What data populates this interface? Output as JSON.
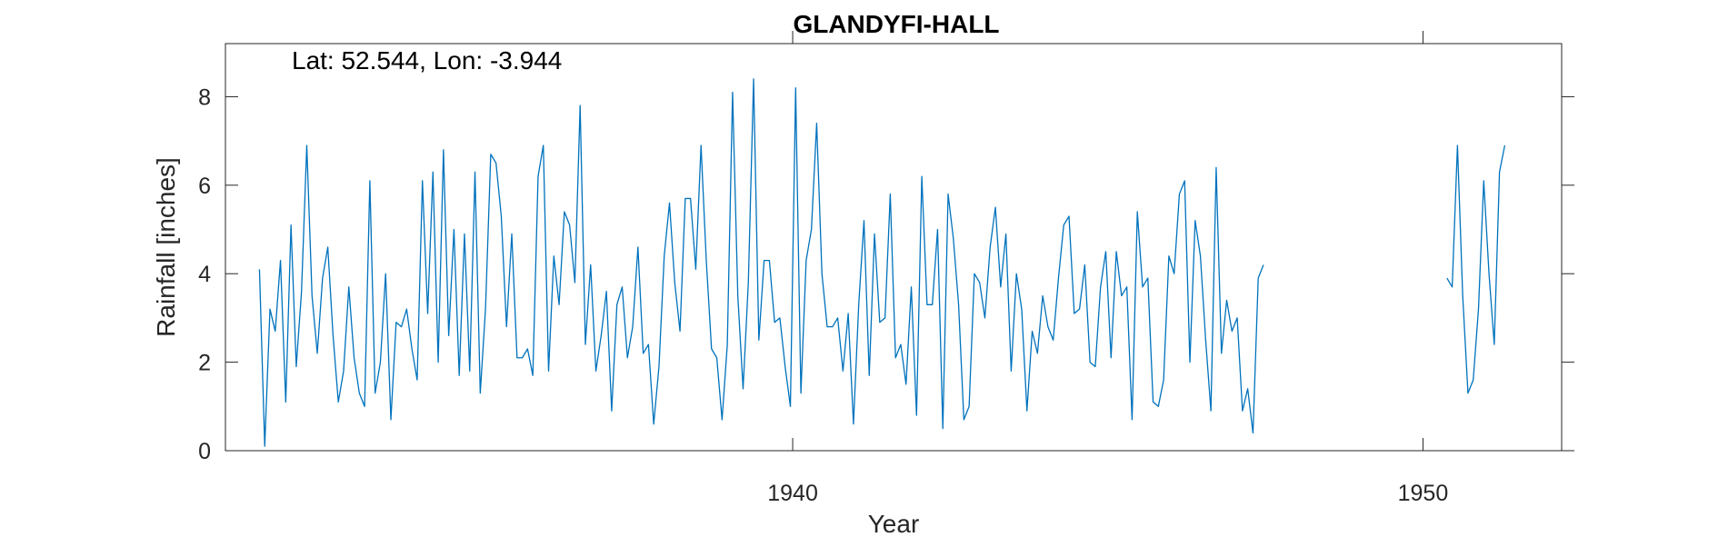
{
  "chart_data": {
    "type": "line",
    "title": "GLANDYFI-HALL",
    "xlabel": "Year",
    "ylabel": "Rainfall [inches]",
    "annotation": "Lat: 52.544, Lon: -3.944",
    "xlim": [
      1931,
      1952.2
    ],
    "ylim": [
      0,
      9.2
    ],
    "xticks": [
      1940,
      1950
    ],
    "yticks": [
      0,
      2,
      4,
      6,
      8
    ],
    "grid": false,
    "legend": "none",
    "line_color": "#0072BD",
    "series": [
      {
        "segments": [
          {
            "start": 1931.54,
            "step": 0.0834,
            "values": [
              4.1,
              0.1,
              3.2,
              2.7,
              4.3,
              1.1,
              5.1,
              1.9,
              3.6,
              6.9,
              3.5,
              2.2,
              3.9,
              4.6,
              2.6,
              1.1,
              1.8,
              3.7,
              2.1,
              1.3,
              1.0,
              6.1,
              1.3,
              2.0,
              4.0,
              0.7,
              2.9,
              2.8,
              3.2,
              2.3,
              1.6,
              6.1,
              3.1,
              6.3,
              2.0,
              6.8,
              2.6,
              5.0,
              1.7,
              4.9,
              1.8,
              6.3,
              1.3,
              3.2,
              6.7,
              6.5,
              5.3,
              2.8,
              4.9,
              2.1,
              2.1,
              2.3,
              1.7,
              6.2,
              6.9,
              1.8,
              4.4,
              3.3,
              5.4,
              5.1,
              3.8,
              7.8,
              2.4,
              4.2,
              1.8,
              2.6,
              3.6,
              0.9,
              3.3,
              3.7,
              2.1,
              2.8,
              4.6,
              2.2,
              2.4,
              0.6,
              1.9,
              4.4,
              5.6,
              3.8,
              2.7,
              5.7,
              5.7,
              4.1,
              6.9,
              4.3,
              2.3,
              2.1,
              0.7,
              2.4,
              8.1,
              3.5,
              1.4,
              3.8,
              8.4,
              2.5,
              4.3,
              4.3,
              2.9,
              3.0,
              1.9,
              1.0,
              8.2,
              1.3,
              4.3,
              5.0,
              7.4,
              4.0,
              2.8,
              2.8,
              3.0,
              1.8,
              3.1,
              0.6,
              3.3,
              5.2,
              1.7,
              4.9,
              2.9,
              3.0,
              5.8,
              2.1,
              2.4,
              1.5,
              3.7,
              0.8,
              6.2,
              3.3,
              3.3,
              5.0,
              0.5,
              5.8,
              4.8,
              3.3,
              0.7,
              1.0,
              4.0,
              3.8,
              3.0,
              4.6,
              5.5,
              3.7,
              4.9,
              1.8,
              4.0,
              3.2,
              0.9,
              2.7,
              2.2,
              3.5,
              2.8,
              2.5,
              3.9,
              5.1,
              5.3,
              3.1,
              3.2,
              4.2,
              2.0,
              1.9,
              3.7,
              4.5,
              2.1,
              4.5,
              3.5,
              3.7,
              0.7,
              5.4,
              3.7,
              3.9,
              1.1,
              1.0,
              1.6,
              4.4,
              4.0,
              5.8,
              6.1,
              2.0,
              5.2,
              4.4,
              2.5,
              0.9,
              6.4,
              2.2,
              3.4,
              2.7,
              3.0,
              0.9,
              1.4,
              0.4,
              3.9,
              4.2
            ]
          },
          {
            "start": 1950.38,
            "step": 0.0834,
            "values": [
              3.9,
              3.7,
              6.9,
              3.5,
              1.3,
              1.6,
              3.2,
              6.1,
              4.0,
              2.4,
              6.3,
              6.9
            ]
          }
        ]
      }
    ]
  }
}
